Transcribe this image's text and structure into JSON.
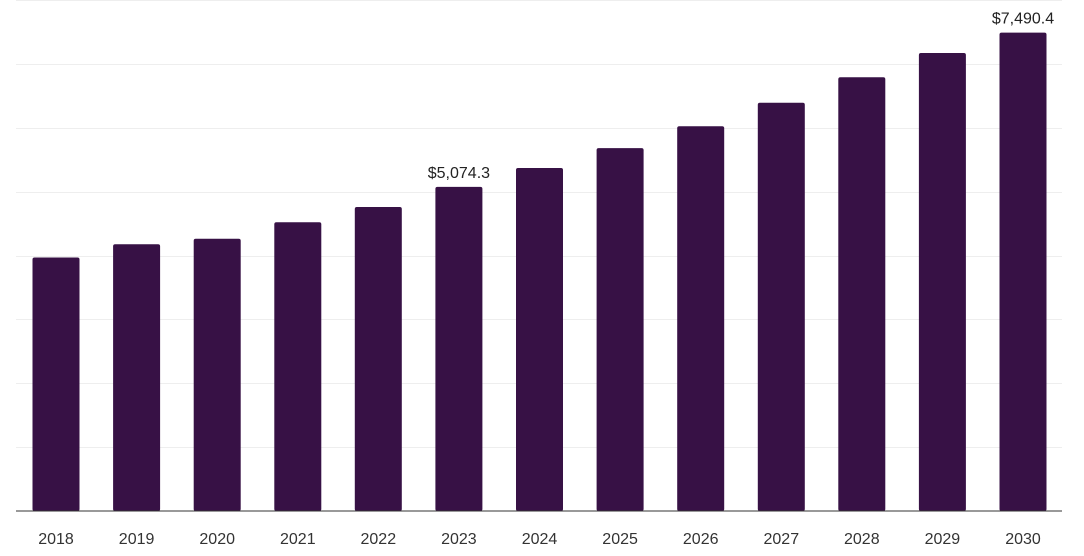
{
  "chart_data": {
    "type": "bar",
    "title": "",
    "xlabel": "",
    "ylabel": "",
    "categories": [
      "2018",
      "2019",
      "2020",
      "2021",
      "2022",
      "2023",
      "2024",
      "2025",
      "2026",
      "2027",
      "2028",
      "2029",
      "2030"
    ],
    "values": [
      3969,
      4176,
      4263,
      4520,
      4760,
      5074.3,
      5370,
      5682,
      6024,
      6390,
      6790,
      7170,
      7490.4
    ],
    "data_labels": [
      "",
      "",
      "",
      "",
      "",
      "$5,074.3",
      "",
      "",
      "",
      "",
      "",
      "",
      "$7,490.4"
    ],
    "ylim": [
      0,
      8000
    ],
    "grid": true,
    "legend": "none",
    "bar_color": "#371145"
  }
}
